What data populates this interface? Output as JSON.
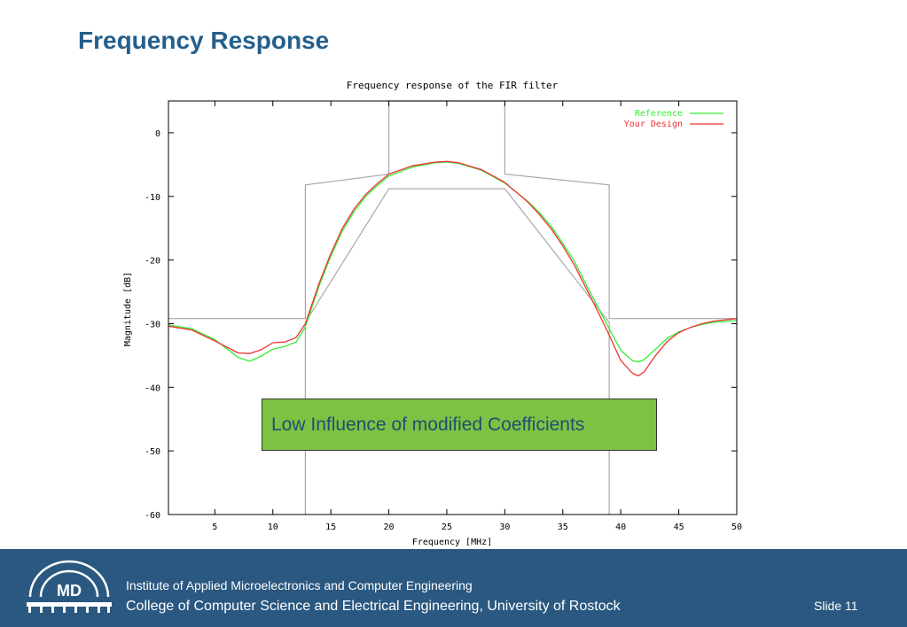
{
  "slide": {
    "title": "Frequency Response",
    "callout": "Low Influence of modified Coefficients",
    "slide_number": "Slide 11"
  },
  "footer": {
    "line1": "Institute of Applied Microelectronics and Computer Engineering",
    "line2": "College of Computer Science and Electrical Engineering, University of Rostock",
    "logo_text": "MD"
  },
  "colors": {
    "title": "#245f8c",
    "footer_bg": "#2a5880",
    "callout_bg": "#7dc242",
    "reference": "#33ee33",
    "your_design": "#ee3333",
    "mask": "#a8a8a8"
  },
  "chart_data": {
    "type": "line",
    "title": "Frequency response of the FIR filter",
    "xlabel": "Frequency [MHz]",
    "ylabel": "Magnitude [dB]",
    "xlim": [
      1,
      50
    ],
    "ylim": [
      -60,
      5
    ],
    "xticks": [
      5,
      10,
      15,
      20,
      25,
      30,
      35,
      40,
      45,
      50
    ],
    "yticks": [
      0,
      -10,
      -20,
      -30,
      -40,
      -50,
      -60
    ],
    "grid": false,
    "legend_position": "top-right",
    "series": [
      {
        "name": "Reference",
        "color": "#33ee33",
        "x": [
          1,
          3,
          5,
          7,
          8,
          9,
          10,
          11,
          12,
          12.8,
          14,
          15,
          16,
          17,
          18,
          19,
          20,
          22,
          24,
          25,
          26,
          28,
          30,
          32,
          33,
          34,
          35,
          36,
          37,
          38,
          39,
          40,
          41,
          41.5,
          42,
          43,
          44,
          45,
          46,
          47,
          48,
          50
        ],
        "y": [
          -30.2,
          -30.8,
          -32.5,
          -35.3,
          -35.9,
          -35.1,
          -34.0,
          -33.6,
          -32.9,
          -30.5,
          -24.0,
          -19.4,
          -15.4,
          -12.4,
          -10.0,
          -8.3,
          -6.8,
          -5.4,
          -4.7,
          -4.6,
          -4.8,
          -5.9,
          -7.9,
          -10.8,
          -12.6,
          -14.7,
          -17.4,
          -20.2,
          -23.8,
          -27.3,
          -30.8,
          -34.2,
          -35.8,
          -36.0,
          -35.7,
          -34.0,
          -32.3,
          -31.3,
          -30.6,
          -30.1,
          -29.8,
          -29.5
        ]
      },
      {
        "name": "Your Design",
        "color": "#ee3333",
        "x": [
          1,
          3,
          5,
          7,
          8,
          9,
          10,
          11,
          12,
          12.8,
          14,
          15,
          16,
          17,
          18,
          19,
          20,
          22,
          24,
          25,
          26,
          28,
          30,
          32,
          33,
          34,
          35,
          36,
          37,
          38,
          39,
          40,
          41,
          41.5,
          42,
          43,
          44,
          45,
          46,
          47,
          48,
          50
        ],
        "y": [
          -30.4,
          -31.0,
          -32.7,
          -34.6,
          -34.7,
          -34.1,
          -33.0,
          -32.9,
          -32.2,
          -30.0,
          -23.6,
          -19.0,
          -15.0,
          -12.0,
          -9.7,
          -8.0,
          -6.5,
          -5.2,
          -4.6,
          -4.5,
          -4.7,
          -5.8,
          -7.8,
          -10.9,
          -12.9,
          -15.1,
          -17.8,
          -20.8,
          -24.4,
          -28.0,
          -31.8,
          -35.8,
          -37.8,
          -38.2,
          -37.6,
          -35.0,
          -32.8,
          -31.4,
          -30.6,
          -30.0,
          -29.6,
          -29.2
        ]
      }
    ],
    "tolerance_mask": {
      "upper": {
        "x": [
          1,
          12.8,
          12.8,
          20,
          20,
          30,
          30,
          39,
          39,
          50
        ],
        "y": [
          -29.2,
          -29.2,
          -8.2,
          -6.5,
          5,
          5,
          -6.5,
          -8.2,
          -29.2,
          -29.2
        ]
      },
      "lower": {
        "x": [
          12.8,
          12.8,
          20,
          30,
          39,
          39
        ],
        "y": [
          -60,
          -29.8,
          -8.8,
          -8.8,
          -29.8,
          -60
        ]
      },
      "color": "#a8a8a8"
    }
  }
}
